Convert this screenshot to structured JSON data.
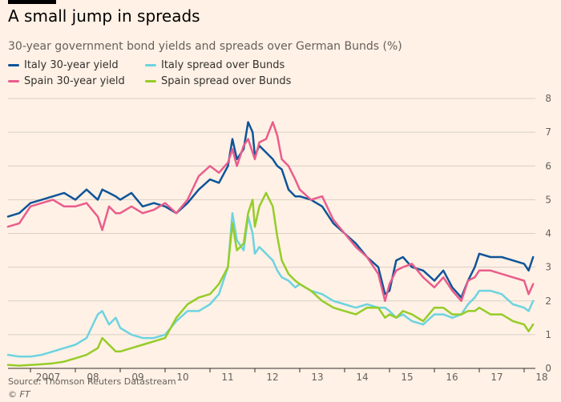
{
  "header": {
    "title": "A small jump in spreads",
    "subtitle": "30-year government bond yields and spreads over German Bunds (%)"
  },
  "footer": {
    "source": "Source: Thomson Reuters Datastream",
    "copyright_symbol": "©",
    "copyright_brand": "FT"
  },
  "colors": {
    "background": "#fff1e5",
    "grid": "#d8cfc6",
    "axis": "#33302e"
  },
  "chart_data": {
    "type": "line",
    "title": "A small jump in spreads",
    "subtitle": "30-year government bond yields and spreads over German Bunds (%)",
    "xlabel": "",
    "ylabel": "",
    "xlim": [
      2006.5,
      2018.25
    ],
    "ylim": [
      0,
      8
    ],
    "y_ticks": [
      0,
      1,
      2,
      3,
      4,
      5,
      6,
      7,
      8
    ],
    "x_ticks": [
      {
        "label": "2007",
        "value": 2007.0
      },
      {
        "label": "08",
        "value": 2008.0
      },
      {
        "label": "09",
        "value": 2009.0
      },
      {
        "label": "10",
        "value": 2010.0
      },
      {
        "label": "11",
        "value": 2011.0
      },
      {
        "label": "12",
        "value": 2012.0
      },
      {
        "label": "13",
        "value": 2013.0
      },
      {
        "label": "14",
        "value": 2014.0
      },
      {
        "label": "15",
        "value": 2015.0
      },
      {
        "label": "16",
        "value": 2016.0
      },
      {
        "label": "17",
        "value": 2017.0
      },
      {
        "label": "18",
        "value": 2018.0
      }
    ],
    "grid": true,
    "y_axis_side": "right",
    "legend_position": "top-left",
    "series": [
      {
        "name": "Italy 30-year yield",
        "color": "#0f5499",
        "x": [
          2006.5,
          2006.75,
          2007.0,
          2007.25,
          2007.5,
          2007.75,
          2008.0,
          2008.25,
          2008.5,
          2008.6,
          2008.75,
          2008.9,
          2009.0,
          2009.25,
          2009.5,
          2009.75,
          2010.0,
          2010.25,
          2010.5,
          2010.75,
          2011.0,
          2011.2,
          2011.4,
          2011.5,
          2011.6,
          2011.75,
          2011.85,
          2011.95,
          2012.0,
          2012.1,
          2012.25,
          2012.4,
          2012.5,
          2012.6,
          2012.75,
          2012.9,
          2013.0,
          2013.25,
          2013.5,
          2013.75,
          2014.0,
          2014.25,
          2014.5,
          2014.75,
          2014.9,
          2015.0,
          2015.15,
          2015.3,
          2015.5,
          2015.75,
          2016.0,
          2016.2,
          2016.4,
          2016.6,
          2016.75,
          2016.9,
          2017.0,
          2017.25,
          2017.5,
          2017.75,
          2018.0,
          2018.1,
          2018.2
        ],
        "values": [
          4.5,
          4.6,
          4.9,
          5.0,
          5.1,
          5.2,
          5.0,
          5.3,
          5.0,
          5.3,
          5.2,
          5.1,
          5.0,
          5.2,
          4.8,
          4.9,
          4.8,
          4.6,
          4.9,
          5.3,
          5.6,
          5.5,
          6.0,
          6.8,
          6.2,
          6.5,
          7.3,
          7.0,
          6.3,
          6.6,
          6.4,
          6.2,
          6.0,
          5.9,
          5.3,
          5.1,
          5.1,
          5.0,
          4.8,
          4.3,
          4.0,
          3.7,
          3.3,
          3.0,
          2.2,
          2.3,
          3.2,
          3.3,
          3.0,
          2.9,
          2.6,
          2.9,
          2.4,
          2.1,
          2.6,
          3.0,
          3.4,
          3.3,
          3.3,
          3.2,
          3.1,
          2.9,
          3.3
        ]
      },
      {
        "name": "Spain 30-year yield",
        "color": "#e95d8c",
        "x": [
          2006.5,
          2006.75,
          2007.0,
          2007.25,
          2007.5,
          2007.75,
          2008.0,
          2008.25,
          2008.5,
          2008.6,
          2008.75,
          2008.9,
          2009.0,
          2009.25,
          2009.5,
          2009.75,
          2010.0,
          2010.25,
          2010.5,
          2010.75,
          2011.0,
          2011.2,
          2011.4,
          2011.5,
          2011.6,
          2011.75,
          2011.85,
          2011.95,
          2012.0,
          2012.1,
          2012.25,
          2012.4,
          2012.5,
          2012.6,
          2012.75,
          2012.9,
          2013.0,
          2013.25,
          2013.5,
          2013.75,
          2014.0,
          2014.25,
          2014.5,
          2014.75,
          2014.9,
          2015.0,
          2015.15,
          2015.3,
          2015.5,
          2015.75,
          2016.0,
          2016.2,
          2016.4,
          2016.6,
          2016.75,
          2016.9,
          2017.0,
          2017.25,
          2017.5,
          2017.75,
          2018.0,
          2018.1,
          2018.2
        ],
        "values": [
          4.2,
          4.3,
          4.8,
          4.9,
          5.0,
          4.8,
          4.8,
          4.9,
          4.5,
          4.1,
          4.8,
          4.6,
          4.6,
          4.8,
          4.6,
          4.7,
          4.9,
          4.6,
          5.0,
          5.7,
          6.0,
          5.8,
          6.1,
          6.5,
          6.0,
          6.6,
          6.8,
          6.4,
          6.2,
          6.7,
          6.8,
          7.3,
          6.9,
          6.2,
          6.0,
          5.6,
          5.3,
          5.0,
          5.1,
          4.4,
          4.0,
          3.6,
          3.3,
          2.8,
          2.0,
          2.5,
          2.9,
          3.0,
          3.1,
          2.7,
          2.4,
          2.7,
          2.3,
          2.0,
          2.6,
          2.7,
          2.9,
          2.9,
          2.8,
          2.7,
          2.6,
          2.2,
          2.5
        ]
      },
      {
        "name": "Italy spread over Bunds",
        "color": "#6dd3e0",
        "x": [
          2006.5,
          2006.75,
          2007.0,
          2007.25,
          2007.5,
          2007.75,
          2008.0,
          2008.25,
          2008.5,
          2008.6,
          2008.75,
          2008.9,
          2009.0,
          2009.25,
          2009.5,
          2009.75,
          2010.0,
          2010.25,
          2010.5,
          2010.75,
          2011.0,
          2011.2,
          2011.4,
          2011.5,
          2011.6,
          2011.75,
          2011.85,
          2011.95,
          2012.0,
          2012.1,
          2012.25,
          2012.4,
          2012.5,
          2012.6,
          2012.75,
          2012.9,
          2013.0,
          2013.25,
          2013.5,
          2013.75,
          2014.0,
          2014.25,
          2014.5,
          2014.75,
          2014.9,
          2015.0,
          2015.15,
          2015.3,
          2015.5,
          2015.75,
          2016.0,
          2016.2,
          2016.4,
          2016.6,
          2016.75,
          2016.9,
          2017.0,
          2017.25,
          2017.5,
          2017.75,
          2018.0,
          2018.1,
          2018.2
        ],
        "values": [
          0.4,
          0.35,
          0.35,
          0.4,
          0.5,
          0.6,
          0.7,
          0.9,
          1.6,
          1.7,
          1.3,
          1.5,
          1.2,
          1.0,
          0.9,
          0.9,
          1.0,
          1.4,
          1.7,
          1.7,
          1.9,
          2.2,
          3.0,
          4.6,
          3.8,
          3.5,
          4.5,
          4.0,
          3.4,
          3.6,
          3.4,
          3.2,
          2.9,
          2.7,
          2.6,
          2.4,
          2.5,
          2.3,
          2.2,
          2.0,
          1.9,
          1.8,
          1.9,
          1.8,
          1.8,
          1.7,
          1.5,
          1.6,
          1.4,
          1.3,
          1.6,
          1.6,
          1.5,
          1.6,
          1.9,
          2.1,
          2.3,
          2.3,
          2.2,
          1.9,
          1.8,
          1.7,
          2.0
        ]
      },
      {
        "name": "Spain spread over Bunds",
        "color": "#96cc28",
        "x": [
          2006.5,
          2006.75,
          2007.0,
          2007.25,
          2007.5,
          2007.75,
          2008.0,
          2008.25,
          2008.5,
          2008.6,
          2008.75,
          2008.9,
          2009.0,
          2009.25,
          2009.5,
          2009.75,
          2010.0,
          2010.25,
          2010.5,
          2010.75,
          2011.0,
          2011.2,
          2011.4,
          2011.5,
          2011.6,
          2011.75,
          2011.85,
          2011.95,
          2012.0,
          2012.1,
          2012.25,
          2012.4,
          2012.5,
          2012.6,
          2012.75,
          2012.9,
          2013.0,
          2013.25,
          2013.5,
          2013.75,
          2014.0,
          2014.25,
          2014.5,
          2014.75,
          2014.9,
          2015.0,
          2015.15,
          2015.3,
          2015.5,
          2015.75,
          2016.0,
          2016.2,
          2016.4,
          2016.6,
          2016.75,
          2016.9,
          2017.0,
          2017.25,
          2017.5,
          2017.75,
          2018.0,
          2018.1,
          2018.2
        ],
        "values": [
          0.1,
          0.08,
          0.1,
          0.12,
          0.15,
          0.2,
          0.3,
          0.4,
          0.6,
          0.9,
          0.7,
          0.5,
          0.5,
          0.6,
          0.7,
          0.8,
          0.9,
          1.5,
          1.9,
          2.1,
          2.2,
          2.5,
          3.0,
          4.3,
          3.5,
          3.7,
          4.6,
          5.0,
          4.2,
          4.8,
          5.2,
          4.8,
          3.9,
          3.2,
          2.8,
          2.6,
          2.5,
          2.3,
          2.0,
          1.8,
          1.7,
          1.6,
          1.8,
          1.8,
          1.5,
          1.6,
          1.5,
          1.7,
          1.6,
          1.4,
          1.8,
          1.8,
          1.6,
          1.6,
          1.7,
          1.7,
          1.8,
          1.6,
          1.6,
          1.4,
          1.3,
          1.1,
          1.3
        ]
      }
    ]
  }
}
